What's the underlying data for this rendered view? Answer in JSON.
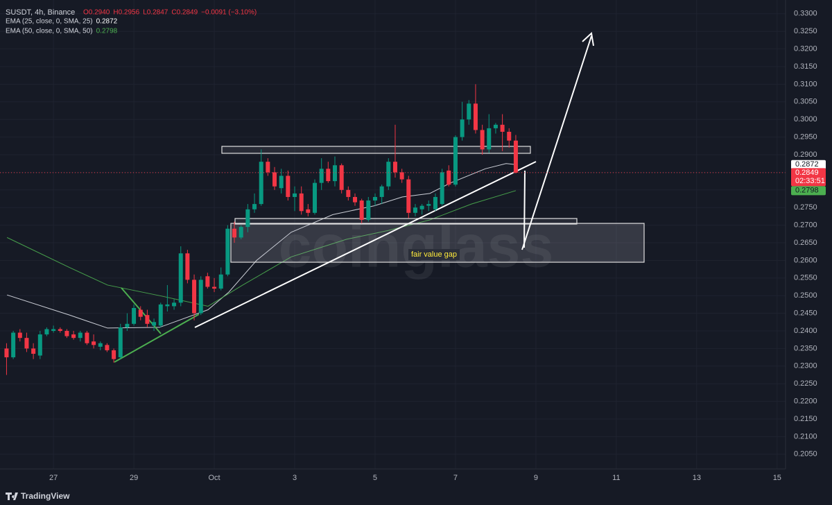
{
  "chart_data": {
    "type": "candlestick",
    "title": "SUSDT, 4h, Binance",
    "ohlc_labels": [
      "O0.2940",
      "H0.2956",
      "L0.2847",
      "C0.2849"
    ],
    "change": "−0.0091 (−3.10%)",
    "watermark": "coinglass",
    "brand": "TradingView",
    "annotation": "fair value gap",
    "up_color": "#089981",
    "down_color": "#f23645",
    "grid": true,
    "x": [
      25.833,
      26,
      26.167,
      26.333,
      26.5,
      26.667,
      26.833,
      27,
      27.167,
      27.333,
      27.5,
      27.667,
      27.833,
      28,
      28.167,
      28.333,
      28.5,
      28.667,
      28.833,
      29,
      29.167,
      29.333,
      29.5,
      29.667,
      29.833,
      30,
      30.167,
      30.333,
      30.5,
      30.667,
      30.833,
      31,
      31.167,
      31.333,
      31.5,
      31.667,
      31.833,
      32,
      32.167,
      32.333,
      32.5,
      32.667,
      32.833,
      33,
      33.167,
      33.333,
      33.5,
      33.667,
      33.833,
      34,
      34.167,
      34.333,
      34.5,
      34.667,
      34.833,
      35,
      35.167,
      35.333,
      35.5,
      35.667,
      35.833,
      36,
      36.167,
      36.333,
      36.5,
      36.667,
      36.833,
      37,
      37.167,
      37.333,
      37.5,
      37.667,
      37.833,
      38,
      38.167,
      38.333,
      38.5
    ],
    "open": [
      0.235,
      0.2325,
      0.2395,
      0.238,
      0.235,
      0.233,
      0.239,
      0.24,
      0.2405,
      0.24,
      0.239,
      0.238,
      0.2395,
      0.237,
      0.2355,
      0.236,
      0.2345,
      0.2325,
      0.241,
      0.242,
      0.246,
      0.2445,
      0.2415,
      0.2415,
      0.247,
      0.247,
      0.248,
      0.262,
      0.2545,
      0.245,
      0.2555,
      0.2525,
      0.252,
      0.256,
      0.269,
      0.2665,
      0.2695,
      0.2745,
      0.276,
      0.288,
      0.285,
      0.2805,
      0.284,
      0.278,
      0.279,
      0.2745,
      0.2735,
      0.282,
      0.286,
      0.2825,
      0.287,
      0.28,
      0.278,
      0.277,
      0.2715,
      0.277,
      0.278,
      0.281,
      0.288,
      0.285,
      0.283,
      0.2735,
      0.2745,
      0.2755,
      0.2745,
      0.276,
      0.2855,
      0.2815,
      0.295,
      0.3,
      0.3045,
      0.297,
      0.2915,
      0.2975,
      0.2985,
      0.2965,
      0.294
    ],
    "high": [
      0.2365,
      0.24,
      0.2405,
      0.2395,
      0.2365,
      0.24,
      0.241,
      0.2415,
      0.241,
      0.2405,
      0.24,
      0.24,
      0.24,
      0.239,
      0.237,
      0.2365,
      0.235,
      0.242,
      0.245,
      0.2475,
      0.247,
      0.246,
      0.2435,
      0.248,
      0.253,
      0.249,
      0.264,
      0.263,
      0.256,
      0.2555,
      0.2565,
      0.255,
      0.258,
      0.27,
      0.271,
      0.27,
      0.276,
      0.279,
      0.2915,
      0.289,
      0.2865,
      0.286,
      0.2855,
      0.281,
      0.281,
      0.276,
      0.283,
      0.289,
      0.288,
      0.2895,
      0.2875,
      0.281,
      0.279,
      0.2775,
      0.278,
      0.279,
      0.2815,
      0.289,
      0.2985,
      0.286,
      0.284,
      0.276,
      0.276,
      0.277,
      0.279,
      0.286,
      0.287,
      0.2955,
      0.305,
      0.3055,
      0.31,
      0.2985,
      0.3015,
      0.299,
      0.3015,
      0.2975,
      0.2956
    ],
    "low": [
      0.2275,
      0.232,
      0.237,
      0.234,
      0.232,
      0.232,
      0.2385,
      0.2395,
      0.2395,
      0.238,
      0.2375,
      0.237,
      0.236,
      0.235,
      0.2345,
      0.234,
      0.231,
      0.232,
      0.24,
      0.2415,
      0.243,
      0.241,
      0.24,
      0.241,
      0.2455,
      0.246,
      0.247,
      0.2535,
      0.243,
      0.2445,
      0.252,
      0.251,
      0.2515,
      0.2555,
      0.265,
      0.266,
      0.268,
      0.2735,
      0.2755,
      0.284,
      0.28,
      0.279,
      0.277,
      0.274,
      0.273,
      0.2725,
      0.273,
      0.28,
      0.282,
      0.281,
      0.279,
      0.277,
      0.2755,
      0.2705,
      0.271,
      0.2755,
      0.276,
      0.28,
      0.2835,
      0.282,
      0.272,
      0.2725,
      0.273,
      0.274,
      0.274,
      0.2755,
      0.281,
      0.281,
      0.294,
      0.2985,
      0.296,
      0.29,
      0.2905,
      0.296,
      0.291,
      0.292,
      0.2847
    ],
    "close": [
      0.2325,
      0.2395,
      0.238,
      0.235,
      0.2335,
      0.239,
      0.2405,
      0.2405,
      0.24,
      0.2385,
      0.238,
      0.2395,
      0.2365,
      0.236,
      0.2365,
      0.2345,
      0.232,
      0.241,
      0.242,
      0.2465,
      0.244,
      0.242,
      0.2425,
      0.2475,
      0.2475,
      0.248,
      0.262,
      0.2545,
      0.245,
      0.2545,
      0.2525,
      0.252,
      0.256,
      0.269,
      0.2665,
      0.2695,
      0.2745,
      0.276,
      0.288,
      0.285,
      0.281,
      0.284,
      0.278,
      0.279,
      0.274,
      0.2735,
      0.282,
      0.286,
      0.2825,
      0.287,
      0.28,
      0.278,
      0.2765,
      0.2715,
      0.277,
      0.278,
      0.281,
      0.288,
      0.285,
      0.283,
      0.2735,
      0.275,
      0.2755,
      0.276,
      0.278,
      0.285,
      0.2815,
      0.295,
      0.3,
      0.3045,
      0.297,
      0.2915,
      0.2975,
      0.2985,
      0.2965,
      0.294,
      0.2849
    ],
    "lines": [
      {
        "name": "EMA (25, close, 0, SMA, 25)",
        "color": "#e0e3eb",
        "x": [
          25.845,
          27.397,
          28.345,
          29.638,
          30.845,
          31.362,
          32.052,
          32.914,
          33.948,
          34.983,
          35.672,
          36.362,
          36.879,
          37.741,
          38.259,
          38.5
        ],
        "values": [
          0.2502,
          0.2445,
          0.2408,
          0.241,
          0.246,
          0.251,
          0.26,
          0.268,
          0.273,
          0.2755,
          0.278,
          0.279,
          0.282,
          0.286,
          0.2875,
          0.2872
        ]
      },
      {
        "name": "EMA (50, close, 0, SMA, 50)",
        "color": "#4caf50",
        "x": [
          25.845,
          27.397,
          28.345,
          29.638,
          30.845,
          31.707,
          32.914,
          34.293,
          35.328,
          36.362,
          37.397,
          38.5
        ],
        "values": [
          0.2665,
          0.258,
          0.253,
          0.25,
          0.247,
          0.253,
          0.261,
          0.266,
          0.2685,
          0.2715,
          0.276,
          0.2798
        ]
      }
    ],
    "price_markers": [
      {
        "value": 0.2872,
        "label": "0.2872",
        "color": "#ffffff",
        "text_color": "#131722"
      },
      {
        "value": 0.2849,
        "label": "0.2849",
        "color": "#f23645",
        "text_color": "#ffffff",
        "countdown": "02:33:51"
      },
      {
        "value": 0.2798,
        "label": "0.2798",
        "color": "#4caf50",
        "text_color": "#131722"
      }
    ],
    "xlim": [
      25.67,
      45.21
    ],
    "ylim": [
      0.1961,
      0.3339
    ],
    "xticks": [
      27,
      29,
      {
        "value": 31,
        "label": "Oct"
      },
      {
        "value": 33,
        "label": "3"
      },
      {
        "value": 35,
        "label": "5"
      },
      {
        "value": 37,
        "label": "7"
      },
      {
        "value": 39,
        "label": "9"
      },
      {
        "value": 41,
        "label": "11"
      },
      {
        "value": 43,
        "label": "13"
      },
      {
        "value": 45,
        "label": "15"
      }
    ],
    "yticks": [
      {
        "value": 0.33,
        "label": "0.3300"
      },
      {
        "value": 0.325,
        "label": "0.3250"
      },
      {
        "value": 0.32,
        "label": "0.3200"
      },
      {
        "value": 0.315,
        "label": "0.3150"
      },
      {
        "value": 0.31,
        "label": "0.3100"
      },
      {
        "value": 0.305,
        "label": "0.3050"
      },
      {
        "value": 0.3,
        "label": "0.3000"
      },
      {
        "value": 0.295,
        "label": "0.2950"
      },
      {
        "value": 0.29,
        "label": "0.2900"
      },
      {
        "value": 0.285,
        "label": "0.2850"
      },
      {
        "value": 0.28,
        "label": "0.2800"
      },
      {
        "value": 0.275,
        "label": "0.2750"
      },
      {
        "value": 0.27,
        "label": "0.2700"
      },
      {
        "value": 0.265,
        "label": "0.2650"
      },
      {
        "value": 0.26,
        "label": "0.2600"
      },
      {
        "value": 0.255,
        "label": "0.2550"
      },
      {
        "value": 0.25,
        "label": "0.2500"
      },
      {
        "value": 0.245,
        "label": "0.2450"
      },
      {
        "value": 0.24,
        "label": "0.2400"
      },
      {
        "value": 0.235,
        "label": "0.2350"
      },
      {
        "value": 0.23,
        "label": "0.2300"
      },
      {
        "value": 0.225,
        "label": "0.2250"
      },
      {
        "value": 0.22,
        "label": "0.2200"
      },
      {
        "value": 0.215,
        "label": "0.2150"
      },
      {
        "value": 0.21,
        "label": "0.2100"
      },
      {
        "value": 0.205,
        "label": "0.2050"
      }
    ]
  }
}
